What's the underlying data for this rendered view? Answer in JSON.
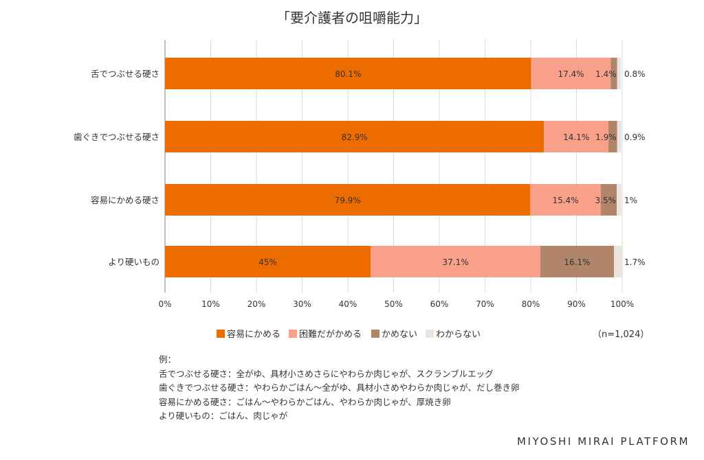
{
  "chart_data": {
    "type": "bar",
    "orientation": "horizontal",
    "stacked": true,
    "title": "「要介護者の咀嚼能力」",
    "categories": [
      "舌でつぶせる硬さ",
      "歯ぐきでつぶせる硬さ",
      "容易にかめる硬さ",
      "より硬いもの"
    ],
    "series": [
      {
        "name": "容易にかめる",
        "color": "#ed6c00",
        "values": [
          80.1,
          82.9,
          79.9,
          45
        ],
        "labels": [
          "80.1%",
          "82.9%",
          "79.9%",
          "45%"
        ]
      },
      {
        "name": "困難だがかめる",
        "color": "#f9a08a",
        "values": [
          17.4,
          14.1,
          15.4,
          37.1
        ],
        "labels": [
          "17.4%",
          "14.1%",
          "15.4%",
          "37.1%"
        ]
      },
      {
        "name": "かめない",
        "color": "#b0856a",
        "values": [
          1.4,
          1.9,
          3.5,
          16.1
        ],
        "labels": [
          "1.4%",
          "1.9%",
          "3.5%",
          "16.1%"
        ]
      },
      {
        "name": "わからない",
        "color": "#ebe4df",
        "values": [
          0.8,
          0.9,
          1,
          1.7
        ],
        "labels": [
          "0.8%",
          "0.9%",
          "1%",
          "1.7%"
        ]
      }
    ],
    "xlim": [
      0,
      100
    ],
    "xticks": [
      "0%",
      "10%",
      "20%",
      "30%",
      "40%",
      "50%",
      "60%",
      "70%",
      "80%",
      "90%",
      "100%"
    ],
    "grid": true,
    "legend_position": "bottom"
  },
  "sample_size": "（n=1,024）",
  "examples": {
    "heading": "例：",
    "lines": [
      "舌でつぶせる硬さ：全がゆ、具材小さめさらにやわらか肉じゃが、スクランブルエッグ",
      "歯ぐきでつぶせる硬さ：やわらかごはん〜全がゆ、具材小さめやわらか肉じゃが、だし巻き卵",
      "容易にかめる硬さ：ごはん〜やわらかごはん、やわらか肉じゃが、厚焼き卵",
      "より硬いもの：ごはん、肉じゃが"
    ]
  },
  "brand": "MIYOSHI MIRAI PLATFORM"
}
